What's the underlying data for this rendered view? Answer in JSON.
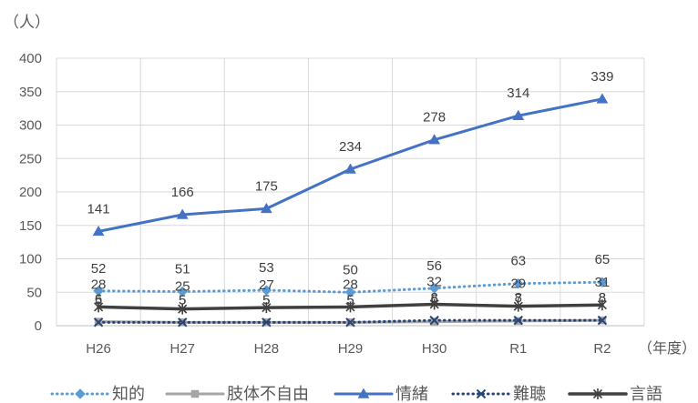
{
  "chart_data": {
    "type": "line",
    "categories": [
      "H26",
      "H27",
      "H28",
      "H29",
      "H30",
      "R1",
      "R2"
    ],
    "ylabel": "（人）",
    "xlabel": "（年度）",
    "ylim": [
      0,
      400
    ],
    "yticks": [
      0,
      50,
      100,
      150,
      200,
      250,
      300,
      350,
      400
    ],
    "grid": true,
    "legend": "bottom",
    "series": [
      {
        "name": "知的",
        "values": [
          52,
          51,
          53,
          50,
          56,
          63,
          65
        ],
        "color": "#5B9BD5",
        "line": "dotted",
        "marker": "diamond"
      },
      {
        "name": "肢体不自由",
        "values": [
          6,
          5,
          5,
          5,
          6,
          7,
          8
        ],
        "color": "#A5A5A5",
        "line": "solid",
        "marker": "square"
      },
      {
        "name": "情緒",
        "values": [
          141,
          166,
          175,
          234,
          278,
          314,
          339
        ],
        "color": "#4472C4",
        "line": "solid",
        "marker": "triangle"
      },
      {
        "name": "難聴",
        "values": [
          5,
          5,
          5,
          5,
          8,
          8,
          8
        ],
        "color": "#264478",
        "line": "dotted",
        "marker": "x"
      },
      {
        "name": "言語",
        "values": [
          28,
          25,
          27,
          28,
          32,
          29,
          31
        ],
        "color": "#404040",
        "line": "solid",
        "marker": "asterisk"
      }
    ]
  }
}
